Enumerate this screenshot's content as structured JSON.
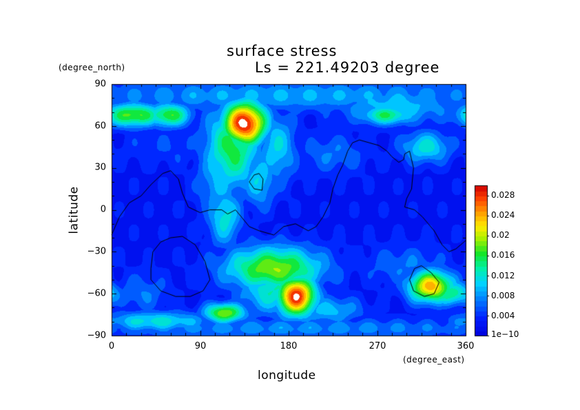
{
  "chart_data": {
    "type": "heatmap",
    "title": "surface stress",
    "subtitle": "Ls = 221.49203 degree",
    "xlabel": "longitude",
    "ylabel": "latitude",
    "xunit": "(degree_east)",
    "yunit": "(degree_north)",
    "xlim": [
      0,
      360
    ],
    "ylim": [
      -90,
      90
    ],
    "xticks": [
      "0",
      "90",
      "180",
      "270",
      "360"
    ],
    "yticks": [
      "90",
      "60",
      "30",
      "0",
      "−30",
      "−60",
      "−90"
    ],
    "colorbar": {
      "min": 0,
      "max": 0.03,
      "labels": [
        "1e−10",
        "0.004",
        "0.008",
        "0.012",
        "0.016",
        "0.02",
        "0.024",
        "0.028"
      ],
      "label_values": [
        0,
        0.004,
        0.008,
        0.012,
        0.016,
        0.02,
        0.024,
        0.028
      ]
    },
    "background_level": 0.0035,
    "features": [
      {
        "lon": 135,
        "lat": 62,
        "rlon": 16,
        "rlat": 11,
        "value": 0.031
      },
      {
        "lon": 123,
        "lat": 45,
        "rlon": 20,
        "rlat": 22,
        "value": 0.017
      },
      {
        "lon": 110,
        "lat": 25,
        "rlon": 16,
        "rlat": 22,
        "value": 0.011
      },
      {
        "lon": 115,
        "lat": -5,
        "rlon": 12,
        "rlat": 15,
        "value": 0.013
      },
      {
        "lon": 168,
        "lat": 45,
        "rlon": 14,
        "rlat": 18,
        "value": 0.012
      },
      {
        "lon": 150,
        "lat": 22,
        "rlon": 12,
        "rlat": 14,
        "value": 0.012
      },
      {
        "lon": 22,
        "lat": 68,
        "rlon": 22,
        "rlat": 6,
        "value": 0.019
      },
      {
        "lon": 58,
        "lat": 68,
        "rlon": 16,
        "rlat": 6,
        "value": 0.018
      },
      {
        "lon": 180,
        "lat": 82,
        "rlon": 180,
        "rlat": 8,
        "value": 0.01
      },
      {
        "lon": 290,
        "lat": 75,
        "rlon": 45,
        "rlat": 10,
        "value": 0.011
      },
      {
        "lon": 280,
        "lat": 68,
        "rlon": 20,
        "rlat": 5,
        "value": 0.016
      },
      {
        "lon": 320,
        "lat": 45,
        "rlon": 18,
        "rlat": 8,
        "value": 0.013
      },
      {
        "lon": 165,
        "lat": -42,
        "rlon": 35,
        "rlat": 11,
        "value": 0.02
      },
      {
        "lon": 188,
        "lat": -62,
        "rlon": 14,
        "rlat": 10,
        "value": 0.03
      },
      {
        "lon": 165,
        "lat": -58,
        "rlon": 25,
        "rlat": 12,
        "value": 0.014
      },
      {
        "lon": 115,
        "lat": -74,
        "rlon": 15,
        "rlat": 5,
        "value": 0.02
      },
      {
        "lon": 45,
        "lat": -80,
        "rlon": 40,
        "rlat": 5,
        "value": 0.013
      },
      {
        "lon": 220,
        "lat": -72,
        "rlon": 25,
        "rlat": 7,
        "value": 0.011
      },
      {
        "lon": 325,
        "lat": -55,
        "rlon": 16,
        "rlat": 8,
        "value": 0.025
      },
      {
        "lon": 345,
        "lat": -60,
        "rlon": 15,
        "rlat": 6,
        "value": 0.016
      },
      {
        "lon": 300,
        "lat": -40,
        "rlon": 30,
        "rlat": 10,
        "value": 0.008
      },
      {
        "lon": 180,
        "lat": -85,
        "rlon": 180,
        "rlat": 5,
        "value": 0.009
      },
      {
        "lon": 60,
        "lat": 45,
        "rlon": 40,
        "rlat": 10,
        "value": 0.006
      },
      {
        "lon": 225,
        "lat": 40,
        "rlon": 25,
        "rlat": 10,
        "value": 0.008
      },
      {
        "lon": 30,
        "lat": -60,
        "rlon": 20,
        "rlat": 10,
        "value": 0.008
      }
    ],
    "contours": [
      [
        [
          0,
          -18
        ],
        [
          8,
          -5
        ],
        [
          18,
          5
        ],
        [
          30,
          10
        ],
        [
          40,
          18
        ],
        [
          52,
          26
        ],
        [
          60,
          28
        ],
        [
          68,
          22
        ],
        [
          72,
          12
        ],
        [
          78,
          2
        ],
        [
          90,
          -2
        ],
        [
          100,
          0
        ],
        [
          112,
          0
        ],
        [
          118,
          -3
        ],
        [
          126,
          0
        ],
        [
          133,
          -6
        ],
        [
          140,
          -12
        ],
        [
          150,
          -15
        ],
        [
          165,
          -18
        ],
        [
          175,
          -12
        ],
        [
          187,
          -10
        ],
        [
          200,
          -15
        ],
        [
          208,
          -12
        ],
        [
          215,
          -5
        ],
        [
          222,
          5
        ],
        [
          225,
          15
        ],
        [
          230,
          25
        ],
        [
          235,
          32
        ],
        [
          240,
          42
        ],
        [
          245,
          48
        ],
        [
          252,
          50
        ],
        [
          262,
          48
        ],
        [
          272,
          46
        ],
        [
          280,
          42
        ],
        [
          285,
          38
        ],
        [
          292,
          34
        ],
        [
          297,
          36
        ],
        [
          298,
          40
        ],
        [
          303,
          42
        ],
        [
          307,
          30
        ],
        [
          305,
          15
        ],
        [
          300,
          8
        ],
        [
          298,
          2
        ],
        [
          308,
          0
        ],
        [
          316,
          -5
        ],
        [
          322,
          -10
        ],
        [
          328,
          -15
        ],
        [
          336,
          -25
        ],
        [
          343,
          -30
        ],
        [
          350,
          -28
        ],
        [
          360,
          -22
        ]
      ],
      [
        [
          40,
          -42
        ],
        [
          42,
          -30
        ],
        [
          50,
          -23
        ],
        [
          60,
          -20
        ],
        [
          72,
          -19
        ],
        [
          85,
          -25
        ],
        [
          95,
          -37
        ],
        [
          100,
          -50
        ],
        [
          93,
          -58
        ],
        [
          80,
          -62
        ],
        [
          65,
          -62
        ],
        [
          50,
          -58
        ],
        [
          40,
          -50
        ],
        [
          40,
          -42
        ]
      ],
      [
        [
          140,
          20
        ],
        [
          145,
          25
        ],
        [
          150,
          26
        ],
        [
          154,
          22
        ],
        [
          153,
          14
        ],
        [
          145,
          15
        ],
        [
          140,
          20
        ]
      ],
      [
        [
          303,
          -50
        ],
        [
          308,
          -42
        ],
        [
          315,
          -40
        ],
        [
          325,
          -45
        ],
        [
          333,
          -52
        ],
        [
          328,
          -60
        ],
        [
          318,
          -62
        ],
        [
          307,
          -58
        ],
        [
          303,
          -50
        ]
      ]
    ]
  }
}
